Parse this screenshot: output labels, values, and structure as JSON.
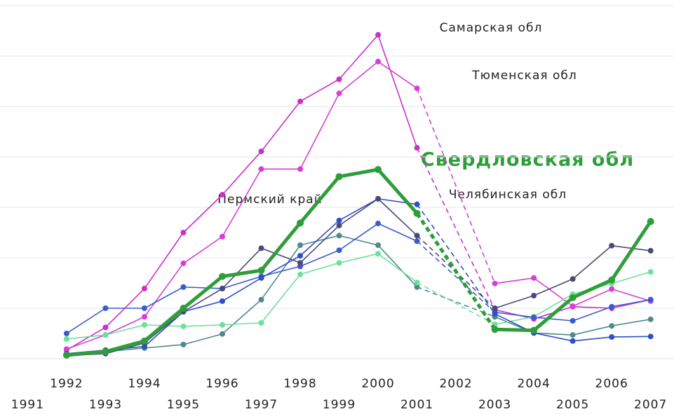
{
  "chart_data": {
    "type": "line",
    "x": [
      1992,
      1993,
      1994,
      1995,
      1996,
      1997,
      1998,
      1999,
      2000,
      2001,
      2002,
      2003,
      2004,
      2005,
      2006,
      2007
    ],
    "xlim": [
      1990.29,
      2007.6
    ],
    "xticks": [
      1991,
      1992,
      1993,
      1994,
      1995,
      1996,
      1997,
      1998,
      1999,
      2000,
      2001,
      2002,
      2003,
      2004,
      2005,
      2006,
      2007
    ],
    "ylim": [
      0,
      7
    ],
    "yticks": [
      0,
      1,
      2,
      3,
      4,
      5,
      6,
      7
    ],
    "grid": true,
    "series": [
      {
        "color": "#cc2ecc",
        "values": [
          0.17,
          0.62,
          1.39,
          2.5,
          3.25,
          4.11,
          5.1,
          5.54,
          6.42,
          4.18,
          null,
          0.97,
          0.79,
          1.03,
          1.0,
          1.17
        ]
      },
      {
        "color": "#d640d6",
        "values": [
          0.19,
          0.47,
          0.83,
          1.89,
          2.42,
          3.76,
          3.76,
          5.26,
          5.89,
          5.36,
          null,
          1.49,
          1.6,
          1.04,
          1.38,
          1.14
        ]
      },
      {
        "color": "#4f8a8a",
        "values": [
          0.06,
          0.14,
          0.21,
          0.28,
          0.49,
          1.17,
          2.25,
          2.44,
          2.25,
          1.42,
          null,
          0.83,
          0.51,
          0.47,
          0.65,
          0.78
        ]
      },
      {
        "color": "#6ee09c",
        "values": [
          0.39,
          0.47,
          0.67,
          0.64,
          0.67,
          0.71,
          1.67,
          1.9,
          2.08,
          1.51,
          null,
          0.68,
          0.83,
          1.28,
          1.49,
          1.72
        ]
      },
      {
        "color": "#3a5bd0",
        "values": [
          0.5,
          1.0,
          1.0,
          1.42,
          1.39,
          1.63,
          1.83,
          2.15,
          2.68,
          2.33,
          null,
          0.92,
          0.82,
          0.75,
          1.03,
          1.17
        ]
      },
      {
        "color": "#2f4fc8",
        "values": [
          0.1,
          0.17,
          0.24,
          0.93,
          1.14,
          1.6,
          2.04,
          2.74,
          3.17,
          3.06,
          null,
          0.89,
          0.51,
          0.35,
          0.43,
          0.44
        ]
      },
      {
        "color": "#4a4a78",
        "values": [
          0.06,
          0.1,
          0.31,
          0.93,
          1.39,
          2.19,
          1.9,
          2.64,
          3.17,
          2.44,
          null,
          1.0,
          1.25,
          1.58,
          2.24,
          2.14
        ]
      },
      {
        "color": "#2e9e3a",
        "values": [
          0.07,
          0.14,
          0.35,
          1.0,
          1.63,
          1.75,
          2.69,
          3.61,
          3.75,
          2.88,
          null,
          0.58,
          0.56,
          1.21,
          1.56,
          2.72
        ]
      }
    ],
    "annotations": [
      "Самарская обл",
      "Тюменская обл",
      "Свердловская обл",
      "Челябинская обл",
      "Пермский край"
    ]
  }
}
